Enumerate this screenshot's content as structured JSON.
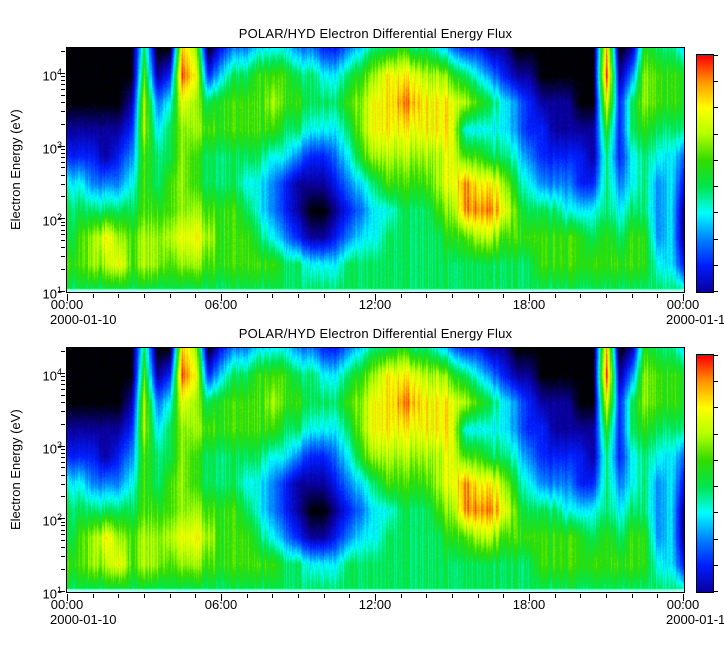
{
  "chart_data": {
    "type": "heatmap",
    "panels_count": 2,
    "title": "POLAR/HYD  Electron Differential Energy Flux",
    "ylabel": "Electron Energy (eV)",
    "x_ticks": [
      "00:00",
      "06:00",
      "12:00",
      "18:00",
      "00:00"
    ],
    "x_tick_hours": [
      0,
      6,
      12,
      18,
      24
    ],
    "x_minor_tick_every_hours": 1,
    "date_left": "2000-01-10",
    "date_right": "2000-01-1",
    "y_tick_labels": [
      "10^4",
      "10^3",
      "10^2",
      "10^1"
    ],
    "y_scale": "log",
    "y_log_min": 1.0,
    "y_log_max": 4.342,
    "time_start_hour": 0,
    "time_end_hour": 24,
    "colormap": {
      "anchors": [
        "#000000",
        "#0a00a0",
        "#001eff",
        "#0082ff",
        "#00ffff",
        "#00e650",
        "#32dc00",
        "#b4ff00",
        "#ffff00",
        "#ff9600",
        "#ff0000"
      ],
      "legend": "0=no data (black), 1=lowest flux (dark blue), 10=highest flux (red)"
    },
    "colorbar": {
      "orientation": "vertical",
      "top_value": 10,
      "bottom_value": 1,
      "tick_count": 10
    },
    "bottom_strip_color": "#aaffee",
    "grid": {
      "cols": 49,
      "rows": 10,
      "col_dt_hours": 0.5,
      "row_center_ev_top_to_bottom": [
        15000,
        5500,
        2200,
        900,
        380,
        150,
        60,
        25,
        14,
        10.5
      ],
      "values": [
        [
          0,
          0,
          0,
          0,
          0,
          0,
          5,
          0,
          0,
          9,
          7,
          0,
          2,
          3,
          3,
          4,
          4,
          4,
          3,
          3,
          2,
          2,
          3,
          4,
          5,
          5,
          6,
          5,
          5,
          4,
          3,
          2,
          2,
          1,
          1,
          0,
          0,
          0,
          0,
          0,
          0,
          0,
          9,
          0,
          1,
          6,
          5,
          5,
          4
        ],
        [
          0,
          0,
          0,
          0,
          0,
          0,
          6,
          1,
          2,
          10,
          8,
          2,
          4,
          5,
          5,
          6,
          6,
          6,
          5,
          5,
          4,
          4,
          5,
          6,
          7,
          8,
          8,
          8,
          7,
          7,
          6,
          5,
          4,
          3,
          2,
          1,
          1,
          0,
          0,
          0,
          0,
          0,
          10,
          1,
          3,
          7,
          6,
          6,
          6
        ],
        [
          0,
          0,
          0,
          0,
          0,
          1,
          7,
          3,
          4,
          8,
          7,
          5,
          6,
          6,
          6,
          6,
          7,
          6,
          6,
          5,
          5,
          5,
          6,
          7,
          8,
          8,
          9,
          9,
          8,
          8,
          8,
          7,
          6,
          5,
          4,
          3,
          2,
          1,
          1,
          1,
          0,
          0,
          8,
          2,
          5,
          7,
          6,
          6,
          6
        ],
        [
          1,
          1,
          1,
          1,
          1,
          2,
          7,
          4,
          5,
          7,
          7,
          6,
          6,
          6,
          6,
          6,
          6,
          5,
          5,
          4,
          4,
          4,
          5,
          7,
          8,
          8,
          8,
          8,
          8,
          8,
          8,
          4,
          4,
          4,
          4,
          3,
          2,
          2,
          1,
          1,
          1,
          1,
          6,
          2,
          5,
          6,
          5,
          5,
          5
        ],
        [
          2,
          2,
          2,
          1,
          2,
          3,
          6,
          5,
          5,
          7,
          6,
          5,
          5,
          5,
          5,
          5,
          4,
          4,
          3,
          2,
          2,
          3,
          4,
          6,
          7,
          7,
          7,
          7,
          7,
          7,
          8,
          6,
          6,
          5,
          5,
          4,
          3,
          2,
          2,
          2,
          2,
          1,
          5,
          2,
          4,
          5,
          4,
          4,
          3
        ],
        [
          4,
          4,
          3,
          3,
          3,
          4,
          6,
          5,
          6,
          7,
          6,
          5,
          5,
          5,
          4,
          4,
          3,
          2,
          1,
          1,
          1,
          2,
          3,
          4,
          5,
          6,
          6,
          6,
          6,
          7,
          8,
          9,
          8,
          8,
          7,
          5,
          4,
          3,
          3,
          3,
          2,
          2,
          5,
          3,
          4,
          5,
          3,
          4,
          2
        ],
        [
          5,
          5,
          5,
          5,
          5,
          5,
          6,
          6,
          6,
          7,
          7,
          6,
          6,
          6,
          5,
          4,
          3,
          2,
          1,
          0,
          0,
          1,
          2,
          3,
          4,
          4,
          5,
          5,
          5,
          6,
          7,
          9,
          9,
          9,
          8,
          6,
          5,
          5,
          5,
          4,
          4,
          4,
          5,
          4,
          5,
          5,
          3,
          4,
          1
        ],
        [
          5,
          6,
          7,
          8,
          7,
          6,
          7,
          7,
          7,
          8,
          8,
          7,
          6,
          6,
          6,
          5,
          4,
          3,
          2,
          1,
          1,
          2,
          3,
          4,
          4,
          5,
          5,
          5,
          5,
          5,
          6,
          6,
          7,
          7,
          6,
          6,
          6,
          6,
          6,
          6,
          6,
          5,
          6,
          5,
          6,
          6,
          3,
          4,
          1
        ],
        [
          6,
          6,
          7,
          7,
          8,
          6,
          7,
          7,
          6,
          7,
          7,
          6,
          6,
          6,
          6,
          6,
          6,
          5,
          5,
          4,
          4,
          4,
          5,
          5,
          5,
          5,
          5,
          5,
          5,
          5,
          5,
          5,
          5,
          5,
          5,
          5,
          5,
          6,
          6,
          6,
          6,
          6,
          6,
          6,
          6,
          6,
          4,
          4,
          2
        ],
        [
          5,
          5,
          5,
          5,
          5,
          5,
          5,
          5,
          5,
          5,
          5,
          5,
          5,
          5,
          5,
          5,
          5,
          5,
          5,
          5,
          5,
          5,
          5,
          5,
          5,
          5,
          5,
          5,
          5,
          5,
          5,
          5,
          5,
          5,
          5,
          5,
          5,
          5,
          5,
          5,
          5,
          5,
          5,
          5,
          5,
          5,
          5,
          5,
          5
        ]
      ]
    }
  },
  "panels": [
    {
      "title": "POLAR/HYD  Electron Differential Energy Flux",
      "ylabel": "Electron Energy (eV)",
      "date_left": "2000-01-10",
      "date_right": "2000-01-1"
    },
    {
      "title": "POLAR/HYD  Electron Differential Energy Flux",
      "ylabel": "Electron Energy (eV)",
      "date_left": "2000-01-10",
      "date_right": "2000-01-1"
    }
  ]
}
